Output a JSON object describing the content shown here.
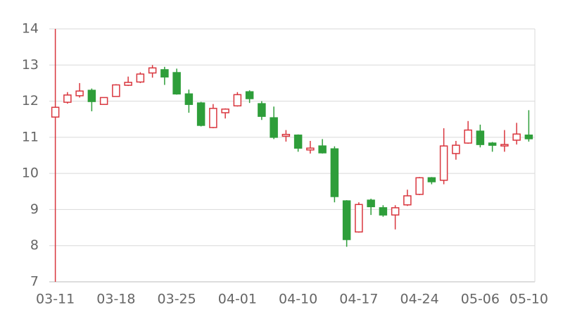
{
  "chart_data": {
    "type": "candlestick",
    "categories": [
      "03-11",
      null,
      null,
      null,
      null,
      "03-18",
      null,
      null,
      null,
      null,
      "03-25",
      null,
      null,
      null,
      null,
      "04-01",
      null,
      null,
      null,
      null,
      "04-10",
      null,
      null,
      null,
      null,
      "04-17",
      null,
      null,
      null,
      null,
      "04-24",
      null,
      null,
      null,
      null,
      "05-06",
      null,
      null,
      null,
      "05-10"
    ],
    "open": [
      11.56,
      11.97,
      12.15,
      12.3,
      11.91,
      12.13,
      12.44,
      12.53,
      12.78,
      12.87,
      12.79,
      12.2,
      11.95,
      11.27,
      11.68,
      11.87,
      12.26,
      11.93,
      11.54,
      11.03,
      11.06,
      10.65,
      10.76,
      10.68,
      9.24,
      8.38,
      9.26,
      9.05,
      8.85,
      9.13,
      9.42,
      9.88,
      9.81,
      10.55,
      10.84,
      11.17,
      10.84,
      10.76,
      10.92,
      11.06
    ],
    "high": [
      14,
      12.25,
      12.5,
      12.35,
      12.1,
      12.47,
      12.68,
      12.8,
      13.0,
      12.95,
      12.9,
      12.32,
      11.98,
      11.92,
      11.8,
      12.25,
      12.3,
      12.0,
      11.85,
      11.2,
      11.08,
      10.9,
      10.95,
      10.75,
      9.26,
      9.2,
      9.3,
      9.12,
      9.12,
      9.55,
      9.9,
      9.9,
      11.25,
      10.9,
      11.45,
      11.35,
      10.87,
      11.2,
      11.4,
      11.75
    ],
    "low": [
      7,
      11.93,
      12.1,
      11.72,
      11.9,
      12.12,
      12.42,
      12.5,
      12.65,
      12.45,
      12.18,
      11.68,
      11.3,
      11.25,
      11.52,
      11.85,
      11.95,
      11.48,
      10.95,
      10.88,
      10.6,
      10.55,
      10.55,
      9.2,
      7.97,
      8.36,
      8.85,
      8.8,
      8.45,
      9.1,
      9.4,
      9.7,
      9.7,
      10.38,
      10.82,
      10.72,
      10.6,
      10.6,
      10.8,
      10.88
    ],
    "close": [
      11.83,
      12.17,
      12.28,
      11.99,
      12.1,
      12.45,
      12.52,
      12.75,
      12.92,
      12.67,
      12.2,
      11.91,
      11.33,
      11.8,
      11.78,
      12.18,
      12.07,
      11.58,
      11.0,
      11.08,
      10.7,
      10.7,
      10.57,
      9.36,
      8.17,
      9.14,
      9.08,
      8.85,
      9.05,
      9.38,
      9.88,
      9.77,
      10.76,
      10.78,
      11.2,
      10.8,
      10.78,
      10.8,
      11.09,
      10.96
    ],
    "up_color": "#d9363e",
    "down_color": "#2e9e3a",
    "ylim": [
      7,
      14
    ],
    "yticks": [
      7,
      8,
      9,
      10,
      11,
      12,
      13,
      14
    ],
    "grid": true
  }
}
